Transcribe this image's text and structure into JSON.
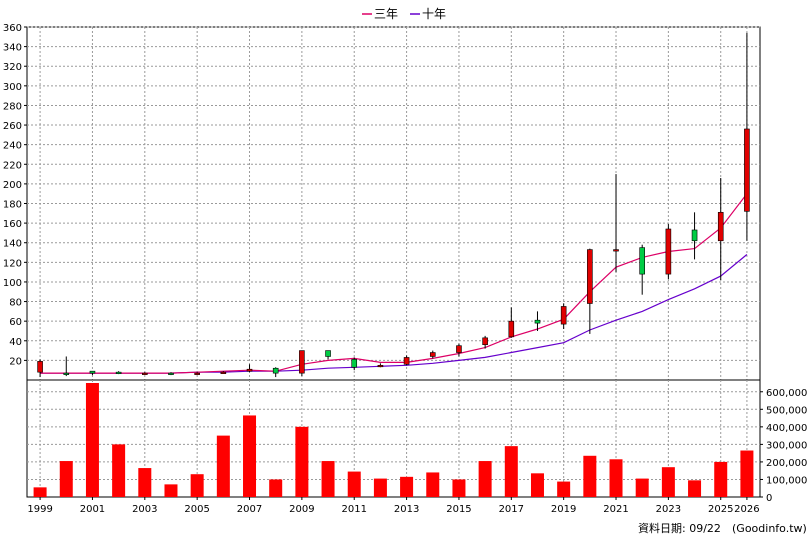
{
  "chart_data": [
    {
      "type": "candlestick",
      "title": "",
      "legend": [
        {
          "name": "三年",
          "color": "#dd0066"
        },
        {
          "name": "十年",
          "color": "#6600cc"
        }
      ],
      "legend_position": "top-center",
      "ylim": [
        0,
        360
      ],
      "yticks": [
        20,
        40,
        60,
        80,
        100,
        120,
        140,
        160,
        180,
        200,
        220,
        240,
        260,
        280,
        300,
        320,
        340,
        360
      ],
      "grid": true,
      "x": [
        1999,
        2000,
        2001,
        2002,
        2003,
        2004,
        2005,
        2006,
        2007,
        2008,
        2009,
        2010,
        2011,
        2012,
        2013,
        2014,
        2015,
        2016,
        2017,
        2018,
        2019,
        2020,
        2021,
        2022,
        2023,
        2024,
        2025,
        2026
      ],
      "candles": [
        {
          "year": 1999,
          "open": 8,
          "high": 21,
          "low": 3,
          "close": 19
        },
        {
          "year": 2000,
          "open": 7,
          "high": 24,
          "low": 4,
          "close": 6
        },
        {
          "year": 2001,
          "open": 9,
          "high": 9,
          "low": 5,
          "close": 7
        },
        {
          "year": 2002,
          "open": 8,
          "high": 9,
          "low": 6,
          "close": 7
        },
        {
          "year": 2003,
          "open": 7,
          "high": 8,
          "low": 6,
          "close": 7
        },
        {
          "year": 2004,
          "open": 7,
          "high": 8,
          "low": 5,
          "close": 6
        },
        {
          "year": 2005,
          "open": 7,
          "high": 8,
          "low": 6,
          "close": 7
        },
        {
          "year": 2006,
          "open": 8,
          "high": 9,
          "low": 7,
          "close": 8
        },
        {
          "year": 2007,
          "open": 9,
          "high": 16,
          "low": 8,
          "close": 11
        },
        {
          "year": 2008,
          "open": 12,
          "high": 13,
          "low": 3,
          "close": 7
        },
        {
          "year": 2009,
          "open": 7,
          "high": 30,
          "low": 4,
          "close": 30
        },
        {
          "year": 2010,
          "open": 30,
          "high": 30,
          "low": 21,
          "close": 24
        },
        {
          "year": 2011,
          "open": 21,
          "high": 23,
          "low": 10,
          "close": 13
        },
        {
          "year": 2012,
          "open": 15,
          "high": 17,
          "low": 13,
          "close": 15
        },
        {
          "year": 2013,
          "open": 16,
          "high": 25,
          "low": 15,
          "close": 23
        },
        {
          "year": 2014,
          "open": 24,
          "high": 30,
          "low": 22,
          "close": 28
        },
        {
          "year": 2015,
          "open": 28,
          "high": 37,
          "low": 24,
          "close": 35
        },
        {
          "year": 2016,
          "open": 36,
          "high": 45,
          "low": 32,
          "close": 43
        },
        {
          "year": 2017,
          "open": 44,
          "high": 74,
          "low": 43,
          "close": 60
        },
        {
          "year": 2018,
          "open": 61,
          "high": 70,
          "low": 50,
          "close": 58
        },
        {
          "year": 2019,
          "open": 57,
          "high": 78,
          "low": 52,
          "close": 75
        },
        {
          "year": 2020,
          "open": 78,
          "high": 134,
          "low": 47,
          "close": 133
        },
        {
          "year": 2021,
          "open": 133,
          "high": 210,
          "low": 110,
          "close": 133
        },
        {
          "year": 2022,
          "open": 135,
          "high": 138,
          "low": 87,
          "close": 108
        },
        {
          "year": 2023,
          "open": 108,
          "high": 159,
          "low": 103,
          "close": 154
        },
        {
          "year": 2024,
          "open": 153,
          "high": 171,
          "low": 123,
          "close": 142
        },
        {
          "year": 2025,
          "open": 142,
          "high": 206,
          "low": 102,
          "close": 171
        },
        {
          "year": 2026,
          "open": 172,
          "high": 354,
          "low": 142,
          "close": 256
        }
      ],
      "ma_three_year": [
        7,
        7,
        7,
        7,
        7,
        7,
        8,
        9,
        10,
        9,
        16,
        20,
        22,
        18,
        18,
        22,
        27,
        33,
        44,
        52,
        62,
        90,
        115,
        125,
        131,
        134,
        155,
        190
      ],
      "ma_ten_year": [
        7,
        7,
        7,
        7,
        7,
        7,
        8,
        8,
        9,
        9,
        10,
        12,
        13,
        14,
        15,
        17,
        20,
        23,
        28,
        33,
        38,
        51,
        61,
        70,
        82,
        93,
        106,
        128
      ],
      "colors": {
        "up": "#e00000",
        "down": "#00cc44",
        "wick": "#000000",
        "ma3": "#dd0066",
        "ma10": "#6600cc"
      }
    },
    {
      "type": "bar",
      "x": [
        1999,
        2000,
        2001,
        2002,
        2003,
        2004,
        2005,
        2006,
        2007,
        2008,
        2009,
        2010,
        2011,
        2012,
        2013,
        2014,
        2015,
        2016,
        2017,
        2018,
        2019,
        2020,
        2021,
        2022,
        2023,
        2024,
        2025,
        2026
      ],
      "values": [
        55000,
        205000,
        650000,
        300000,
        165000,
        72000,
        130000,
        350000,
        465000,
        100000,
        400000,
        205000,
        145000,
        105000,
        115000,
        140000,
        100000,
        205000,
        290000,
        135000,
        88000,
        235000,
        215000,
        105000,
        170000,
        95000,
        200000,
        265000
      ],
      "ylim": [
        0,
        650000
      ],
      "yticks": [
        "0",
        "100,000",
        "200,000",
        "300,000",
        "400,000",
        "500,000",
        "600,000"
      ],
      "xticks": [
        "1999",
        "2001",
        "2003",
        "2005",
        "2007",
        "2009",
        "2011",
        "2013",
        "2015",
        "2017",
        "2019",
        "2021",
        "2023",
        "2025",
        "2026"
      ],
      "bar_color": "#ff0000"
    }
  ],
  "footer": {
    "date_label": "資料日期: 09/22",
    "source": "(Goodinfo.tw)"
  }
}
